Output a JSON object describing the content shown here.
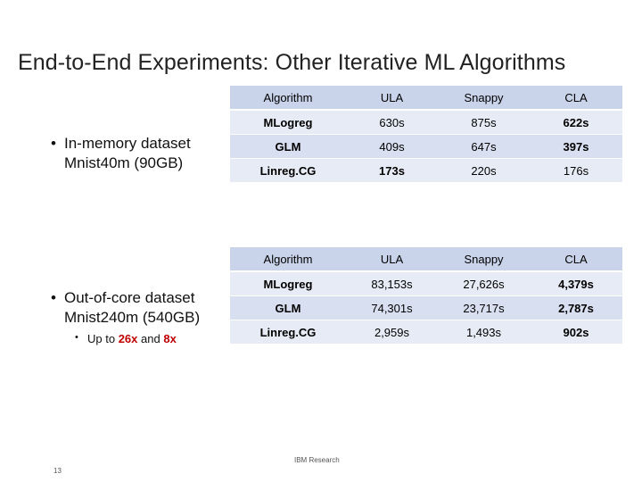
{
  "slide": {
    "title": "End-to-End Experiments: Other Iterative ML Algorithms",
    "bullet1": {
      "line1": "In-memory dataset",
      "line2": "Mnist40m (90GB)"
    },
    "bullet2": {
      "line1": "Out-of-core dataset",
      "line2": "Mnist240m (540GB)"
    },
    "sub_bullet": {
      "prefix": "Up to",
      "value1": "26x",
      "connector": "and",
      "value2": "8x"
    },
    "footer": "IBM Research",
    "page_number": "13"
  },
  "tables": [
    {
      "headers": [
        "Algorithm",
        "ULA",
        "Snappy",
        "CLA"
      ],
      "rows": [
        [
          "MLogreg",
          "630s",
          "875s",
          "622s"
        ],
        [
          "GLM",
          "409s",
          "647s",
          "397s"
        ],
        [
          "Linreg.CG",
          "173s",
          "220s",
          "176s"
        ]
      ]
    },
    {
      "headers": [
        "Algorithm",
        "ULA",
        "Snappy",
        "CLA"
      ],
      "rows": [
        [
          "MLogreg",
          "83,153s",
          "27,626s",
          "4,379s"
        ],
        [
          "GLM",
          "74,301s",
          "23,717s",
          "2,787s"
        ],
        [
          "Linreg.CG",
          "2,959s",
          "1,493s",
          "902s"
        ]
      ]
    }
  ]
}
